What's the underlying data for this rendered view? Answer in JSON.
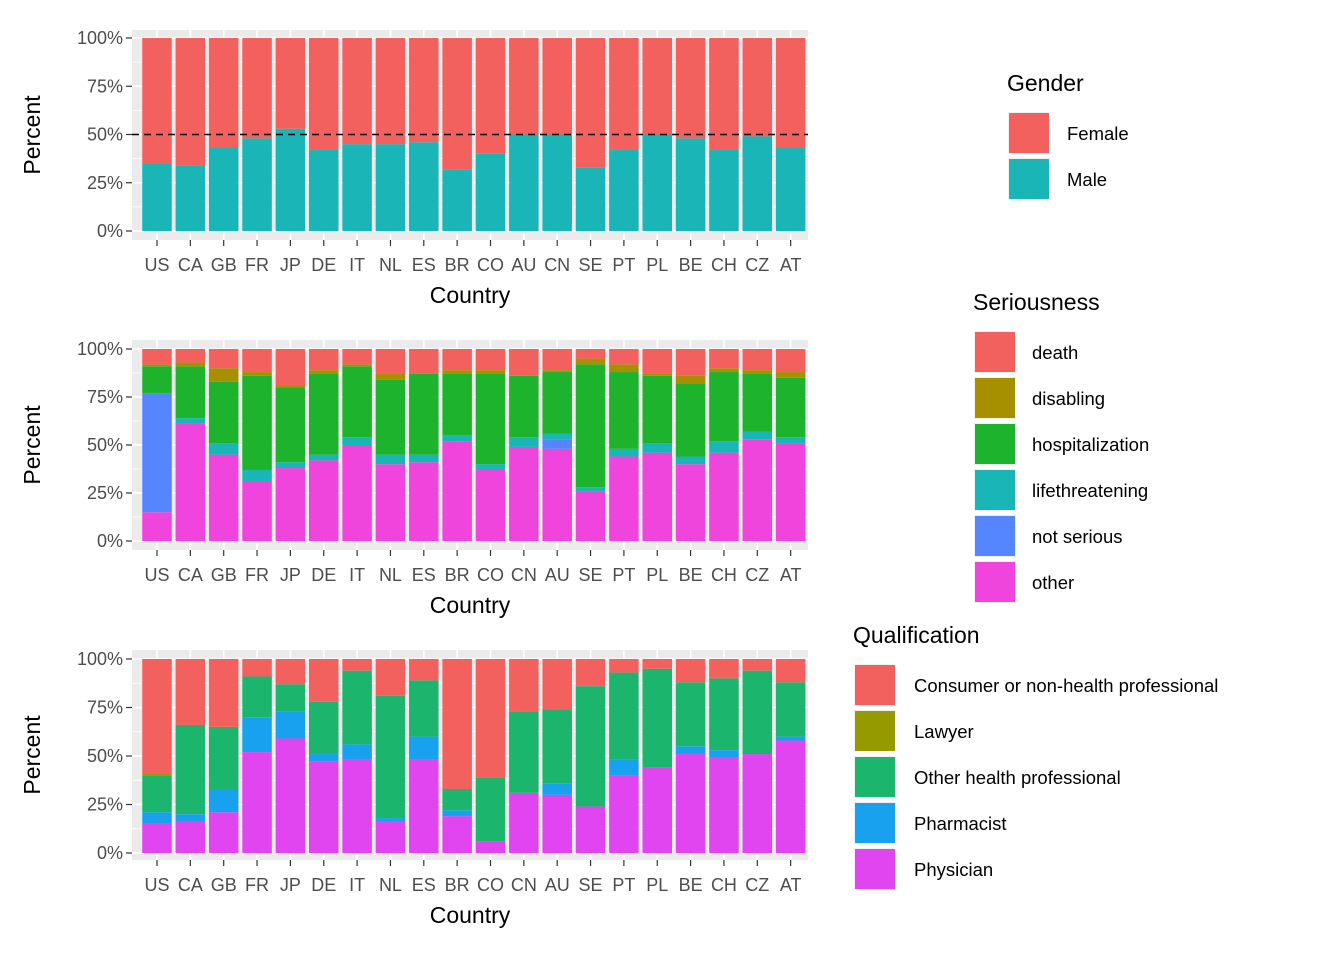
{
  "chart_data": [
    {
      "type": "bar",
      "stacked": true,
      "xlabel": "Country",
      "ylabel": "Percent",
      "yticks": [
        "0%",
        "25%",
        "50%",
        "75%",
        "100%"
      ],
      "ylim": [
        0,
        100
      ],
      "categories": [
        "US",
        "CA",
        "GB",
        "FR",
        "JP",
        "DE",
        "IT",
        "NL",
        "ES",
        "BR",
        "CO",
        "AU",
        "CN",
        "SE",
        "PT",
        "PL",
        "BE",
        "CH",
        "CZ",
        "AT"
      ],
      "reference_line": 50,
      "legend": {
        "title": "Gender",
        "position": "right"
      },
      "series": [
        {
          "name": "Male",
          "color": "#19b5b7",
          "values": [
            35,
            34,
            43,
            48,
            53,
            42,
            45,
            45,
            46,
            32,
            40,
            50,
            50,
            33,
            42,
            50,
            48,
            42,
            49,
            43
          ]
        },
        {
          "name": "Female",
          "color": "#f2615e",
          "values": [
            65,
            66,
            57,
            52,
            47,
            58,
            55,
            55,
            54,
            68,
            60,
            50,
            50,
            67,
            58,
            50,
            52,
            58,
            51,
            57
          ]
        }
      ]
    },
    {
      "type": "bar",
      "stacked": true,
      "xlabel": "Country",
      "ylabel": "Percent",
      "yticks": [
        "0%",
        "25%",
        "50%",
        "75%",
        "100%"
      ],
      "ylim": [
        0,
        100
      ],
      "categories": [
        "US",
        "CA",
        "GB",
        "FR",
        "JP",
        "DE",
        "IT",
        "NL",
        "ES",
        "BR",
        "CO",
        "CN",
        "AU",
        "SE",
        "PT",
        "PL",
        "BE",
        "CH",
        "CZ",
        "AT"
      ],
      "legend": {
        "title": "Seriousness",
        "position": "right"
      },
      "series": [
        {
          "name": "other",
          "color": "#ef45dd",
          "values": [
            15,
            61,
            45,
            31,
            38,
            42,
            50,
            40,
            41,
            52,
            37,
            49,
            48,
            26,
            44,
            46,
            40,
            46,
            53,
            51
          ]
        },
        {
          "name": "not serious",
          "color": "#5585ff",
          "values": [
            62,
            0,
            0,
            0,
            0,
            0,
            0,
            0,
            0,
            0,
            0,
            0,
            5,
            0,
            0,
            0,
            0,
            0,
            0,
            0
          ]
        },
        {
          "name": "lifethreatening",
          "color": "#19b5b7",
          "values": [
            0,
            3,
            6,
            6,
            3,
            3,
            4,
            5,
            4,
            3,
            3,
            5,
            3,
            2,
            4,
            5,
            4,
            6,
            4,
            3
          ]
        },
        {
          "name": "hospitalization",
          "color": "#1db32d",
          "values": [
            14,
            27,
            32,
            49,
            39,
            42,
            37,
            39,
            42,
            32,
            47,
            32,
            32,
            64,
            40,
            35,
            38,
            36,
            30,
            31
          ]
        },
        {
          "name": "disabling",
          "color": "#a69000",
          "values": [
            1,
            2,
            7,
            2,
            1,
            2,
            1,
            3,
            0,
            2,
            2,
            0,
            1,
            3,
            4,
            1,
            4,
            2,
            2,
            3
          ]
        },
        {
          "name": "death",
          "color": "#f2615e",
          "values": [
            8,
            7,
            10,
            12,
            19,
            11,
            8,
            13,
            13,
            11,
            11,
            14,
            11,
            5,
            8,
            13,
            14,
            10,
            11,
            12
          ]
        }
      ]
    },
    {
      "type": "bar",
      "stacked": true,
      "xlabel": "Country",
      "ylabel": "Percent",
      "yticks": [
        "0%",
        "25%",
        "50%",
        "75%",
        "100%"
      ],
      "ylim": [
        0,
        100
      ],
      "categories": [
        "US",
        "CA",
        "GB",
        "FR",
        "JP",
        "DE",
        "IT",
        "NL",
        "ES",
        "BR",
        "CO",
        "CN",
        "AU",
        "SE",
        "PT",
        "PL",
        "BE",
        "CH",
        "CZ",
        "AT"
      ],
      "legend": {
        "title": "Qualification",
        "position": "right"
      },
      "series": [
        {
          "name": "Physician",
          "color": "#e045f0",
          "values": [
            15,
            16,
            21,
            52,
            59,
            47,
            48,
            16,
            48,
            19,
            6,
            31,
            30,
            24,
            40,
            44,
            51,
            49,
            51,
            58
          ]
        },
        {
          "name": "Pharmacist",
          "color": "#17a1ef",
          "values": [
            6,
            4,
            12,
            18,
            14,
            4,
            8,
            2,
            12,
            3,
            0,
            0,
            6,
            0,
            8,
            0,
            4,
            4,
            0,
            2
          ]
        },
        {
          "name": "Other health professional",
          "color": "#1cb56e",
          "values": [
            19,
            46,
            32,
            21,
            14,
            27,
            38,
            63,
            29,
            11,
            33,
            42,
            38,
            62,
            45,
            51,
            33,
            37,
            43,
            28
          ]
        },
        {
          "name": "Lawyer",
          "color": "#959a00",
          "values": [
            1,
            0,
            0,
            0,
            0,
            0,
            0,
            0,
            0,
            0,
            0,
            0,
            0,
            0,
            0,
            0,
            0,
            0,
            0,
            0
          ]
        },
        {
          "name": "Consumer or non-health professional",
          "color": "#f2615e",
          "values": [
            59,
            34,
            35,
            9,
            13,
            22,
            6,
            19,
            11,
            67,
            61,
            27,
            26,
            14,
            7,
            5,
            12,
            10,
            6,
            12
          ]
        }
      ]
    }
  ]
}
